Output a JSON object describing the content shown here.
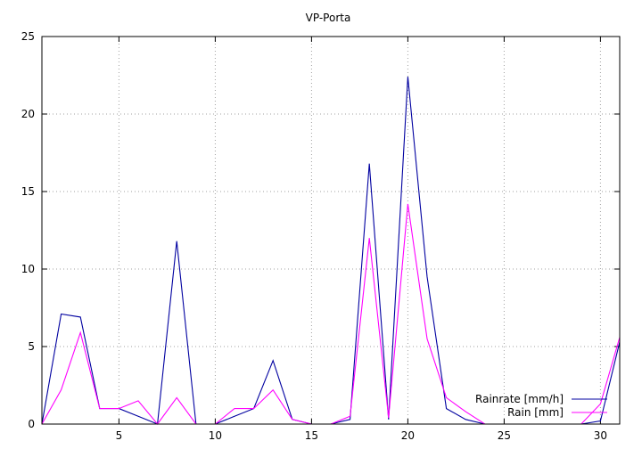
{
  "chart_data": {
    "type": "line",
    "title": "VP-Porta",
    "xlabel": "",
    "ylabel": "",
    "xlim": [
      1,
      31
    ],
    "ylim": [
      0,
      25
    ],
    "xticks": [
      5,
      10,
      15,
      20,
      25,
      30
    ],
    "yticks": [
      0,
      5,
      10,
      15,
      20,
      25
    ],
    "grid": true,
    "legend_position": "bottom-right",
    "x": [
      1,
      2,
      3,
      4,
      5,
      6,
      7,
      8,
      9,
      10,
      11,
      12,
      13,
      14,
      15,
      16,
      17,
      18,
      19,
      20,
      21,
      22,
      23,
      24,
      25,
      26,
      27,
      28,
      29,
      30,
      31
    ],
    "series": [
      {
        "name": "Rainrate [mm/h]",
        "color": "#0000a0",
        "values": [
          0,
          7.1,
          6.9,
          1.0,
          1.0,
          0.5,
          0,
          11.8,
          0,
          0,
          0.5,
          1.0,
          4.1,
          0.3,
          0,
          0,
          0.3,
          16.8,
          0.3,
          22.4,
          9.5,
          1.0,
          0.3,
          0,
          0,
          0,
          0,
          0,
          0,
          0.2,
          5.3
        ]
      },
      {
        "name": "Rain [mm]",
        "color": "#ff00ff",
        "values": [
          0,
          2.2,
          5.9,
          1.0,
          1.0,
          1.5,
          0,
          1.7,
          0,
          0,
          1.0,
          1.0,
          2.2,
          0.3,
          0,
          0,
          0.5,
          12.0,
          0.4,
          14.2,
          5.5,
          1.7,
          0.8,
          0,
          0,
          0,
          0,
          0,
          0,
          1.3,
          5.6
        ]
      }
    ]
  }
}
